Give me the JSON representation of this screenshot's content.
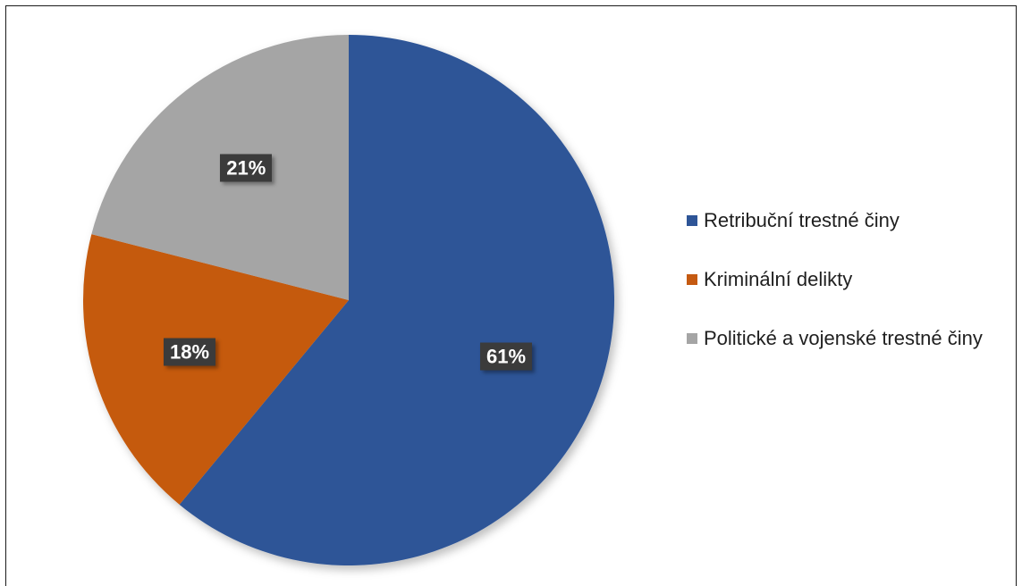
{
  "chart_data": {
    "type": "pie",
    "title": "",
    "slices": [
      {
        "label": "Retribuční trestné činy",
        "value": 61,
        "display": "61%",
        "color": "#2e5597"
      },
      {
        "label": "Kriminální delikty",
        "value": 18,
        "display": "18%",
        "color": "#c55a11"
      },
      {
        "label": "Politické a vojenské trestné činy",
        "value": 21,
        "display": "21%",
        "color": "#a5a5a5"
      }
    ],
    "legend_position": "right",
    "start_angle_deg": 0,
    "direction": "clockwise"
  }
}
